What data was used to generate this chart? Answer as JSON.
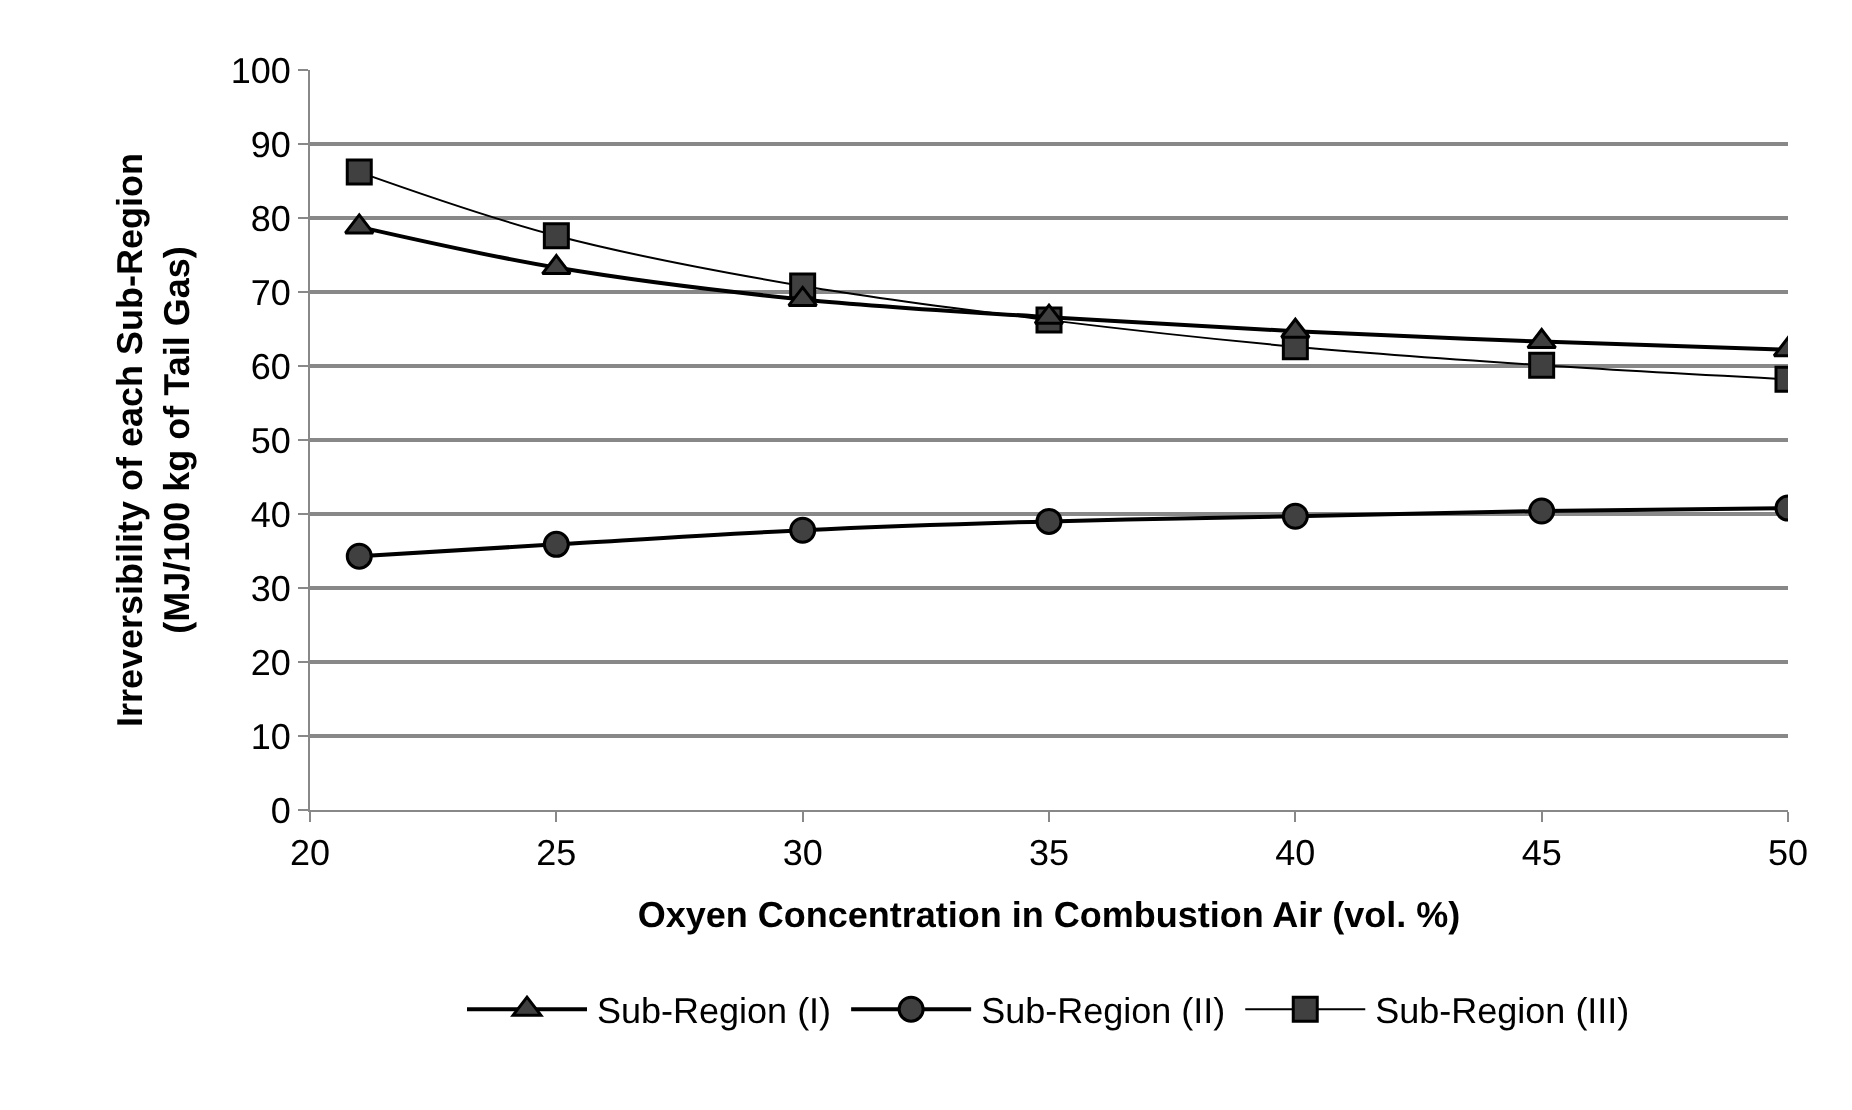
{
  "chart_data": {
    "type": "line",
    "xlabel": "Oxyen Concentration in Combustion Air (vol. %)",
    "ylabel": "Irreversibility of each Sub-Region\n(MJ/100 kg of Tail Gas)",
    "x": [
      21,
      25,
      30,
      35,
      40,
      45,
      50
    ],
    "series": [
      {
        "name": "Sub-Region (I)",
        "color": "#000000",
        "marker": "triangle",
        "values": [
          78.8,
          73.3,
          69.0,
          66.6,
          64.7,
          63.3,
          62.2
        ]
      },
      {
        "name": "Sub-Region (II)",
        "color": "#000000",
        "marker": "circle",
        "values": [
          34.3,
          35.9,
          37.8,
          39.0,
          39.7,
          40.4,
          40.8
        ]
      },
      {
        "name": "Sub-Region (III)",
        "color": "#000000",
        "marker": "square",
        "values": [
          86.2,
          77.6,
          70.8,
          66.2,
          62.6,
          60.1,
          58.2
        ]
      }
    ],
    "xlim": [
      20,
      50
    ],
    "xticks": [
      20,
      25,
      30,
      35,
      40,
      45,
      50
    ],
    "ylim": [
      0,
      100
    ],
    "yticks": [
      0,
      10,
      20,
      30,
      40,
      50,
      60,
      70,
      80,
      90,
      100
    ],
    "grid": "y",
    "legend": "bottom",
    "line_style": "solid"
  }
}
